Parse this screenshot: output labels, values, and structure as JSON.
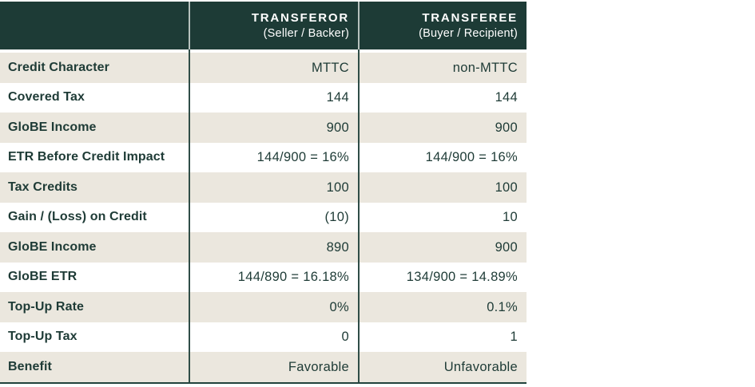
{
  "table": {
    "columns": [
      {
        "title": "",
        "subtitle": ""
      },
      {
        "title": "TRANSFEROR",
        "subtitle": "(Seller / Backer)"
      },
      {
        "title": "TRANSFEREE",
        "subtitle": "(Buyer / Recipient)"
      }
    ],
    "rows": [
      {
        "label": "Credit Character",
        "transferor": "MTTC",
        "transferee": "non-MTTC"
      },
      {
        "label": "Covered Tax",
        "transferor": "144",
        "transferee": "144"
      },
      {
        "label": "GloBE Income",
        "transferor": "900",
        "transferee": "900"
      },
      {
        "label": "ETR Before Credit Impact",
        "transferor": "144/900 = 16%",
        "transferee": "144/900 = 16%"
      },
      {
        "label": "Tax Credits",
        "transferor": "100",
        "transferee": "100"
      },
      {
        "label": "Gain / (Loss) on Credit",
        "transferor": "(10)",
        "transferee": "10"
      },
      {
        "label": "GloBE Income",
        "transferor": "890",
        "transferee": "900"
      },
      {
        "label": "GloBE ETR",
        "transferor": "144/890 = 16.18%",
        "transferee": "134/900 = 14.89%"
      },
      {
        "label": "Top-Up Rate",
        "transferor": "0%",
        "transferee": "0.1%"
      },
      {
        "label": "Top-Up Tax",
        "transferor": "0",
        "transferee": "1"
      },
      {
        "label": "Benefit",
        "transferor": "Favorable",
        "transferee": "Unfavorable"
      }
    ],
    "colors": {
      "header_bg": "#1d3b36",
      "header_text": "#ffffff",
      "header_divider": "#b7c2be",
      "body_divider": "#2f4d47",
      "row_alt_bg": "#ebe7de",
      "row_bg": "#ffffff",
      "text": "#1e3b36",
      "bottom_rule": "#22423c"
    }
  }
}
